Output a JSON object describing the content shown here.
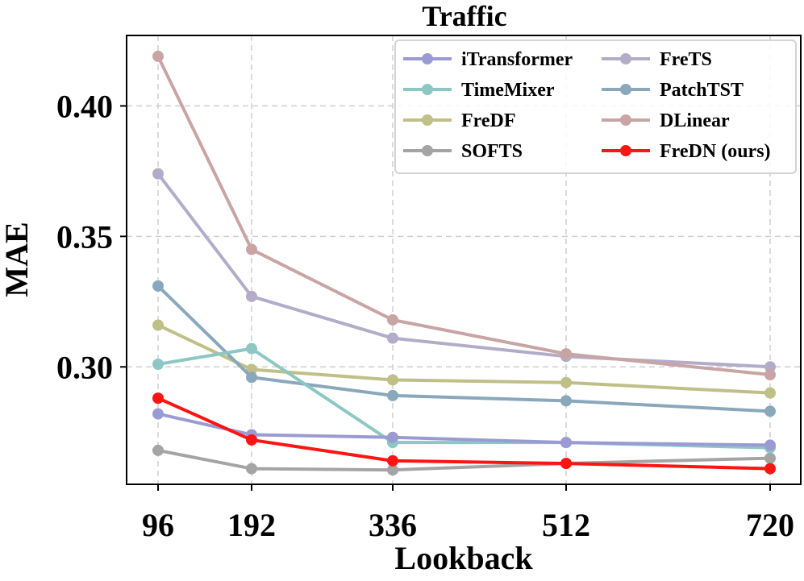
{
  "chart_data": {
    "type": "line",
    "title": "Traffic",
    "xlabel": "Lookback",
    "ylabel": "MAE",
    "x": [
      96,
      192,
      336,
      512,
      720
    ],
    "x_tick_labels": [
      "96",
      "192",
      "336",
      "512",
      "720"
    ],
    "y_ticks": [
      0.3,
      0.35,
      0.4
    ],
    "y_tick_labels": [
      "0.30",
      "0.35",
      "0.40"
    ],
    "ylim": [
      0.255,
      0.427
    ],
    "grid": true,
    "legend_position": "top-right",
    "series": [
      {
        "name": "iTransformer",
        "color": "#9b9bd3",
        "values": [
          0.282,
          0.274,
          0.273,
          0.271,
          0.27
        ]
      },
      {
        "name": "FreTS",
        "color": "#b2acc9",
        "values": [
          0.374,
          0.327,
          0.311,
          0.304,
          0.3
        ]
      },
      {
        "name": "TimeMixer",
        "color": "#8cc7c4",
        "values": [
          0.301,
          0.307,
          0.271,
          0.271,
          0.269
        ]
      },
      {
        "name": "PatchTST",
        "color": "#89a8bc",
        "values": [
          0.331,
          0.296,
          0.289,
          0.287,
          0.283
        ]
      },
      {
        "name": "FreDF",
        "color": "#bfbf88",
        "values": [
          0.316,
          0.299,
          0.295,
          0.294,
          0.29
        ]
      },
      {
        "name": "DLinear",
        "color": "#c9a4a4",
        "values": [
          0.419,
          0.345,
          0.318,
          0.305,
          0.297
        ]
      },
      {
        "name": "SOFTS",
        "color": "#a4a4a4",
        "values": [
          0.268,
          0.261,
          0.2605,
          0.263,
          0.265
        ]
      },
      {
        "name": "FreDN (ours)",
        "color": "#ff1414",
        "values": [
          0.288,
          0.272,
          0.264,
          0.263,
          0.261
        ]
      }
    ]
  }
}
